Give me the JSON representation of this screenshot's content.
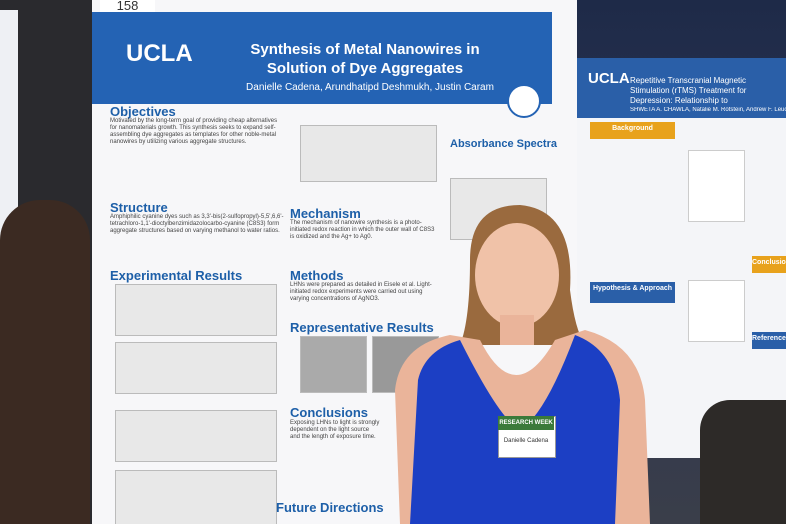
{
  "poster_number": "158",
  "left_poster": {
    "logo": "UCLA",
    "title": "Synthesis of Metal Nanowires in Solution of Dye Aggregates",
    "authors": "Danielle Cadena, Arundhatipd Deshmukh, Justin Caram",
    "sections": [
      "Objectives",
      "Structure",
      "Experimental Results",
      "Mechanism",
      "Methods",
      "Representative Results",
      "Conclusions",
      "Future Directions",
      "Absorbance Spectra"
    ],
    "objectives_text": "Motivated by the long-term goal of providing cheap alternatives for nanomaterials growth. This synthesis seeks to expand self-assembling dye aggregates as templates for other noble-metal nanowires by utilizing various aggregate structures.",
    "structure_text": "Amphiphilic cyanine dyes such as 3,3'-bis(2-sulfopropyl)-5,5',6,6'-tetrachloro-1,1'-dioctylbenzimidazolocarbo-cyanine (C8S3) form aggregate structures based on varying methanol to water ratios.",
    "mechanism_text": "The mechanism of nanowire synthesis is a photo-initiated redox reaction in which the outer wall of C8S3 is oxidized and the Ag+ to Ag0.",
    "methods_text": "LHNs were prepared as detailed in Eisele et al. Light-initiated redox experiments were carried out using varying concentrations of AgNO3.",
    "conclusions_text": "Exposing LHNs to light is strongly dependent on the light source and the length of exposure time."
  },
  "right_poster": {
    "logo": "UCLA",
    "title": "Repetitive Transcranial Magnetic Stimulation (rTMS) Treatment for Depression: Relationship to Benzodiazepine and Psychot",
    "authors": "SHWETA A. CHAWLA, Natalie M. Rotstein, Andrew F. Leuchter, Aimee M. Hunter",
    "sections": [
      "Background",
      "Hypothesis & Approach",
      "Conclusions and Fu",
      "References & A"
    ]
  },
  "badge": {
    "header": "RESEARCH WEEK",
    "name": "Danielle Cadena"
  }
}
